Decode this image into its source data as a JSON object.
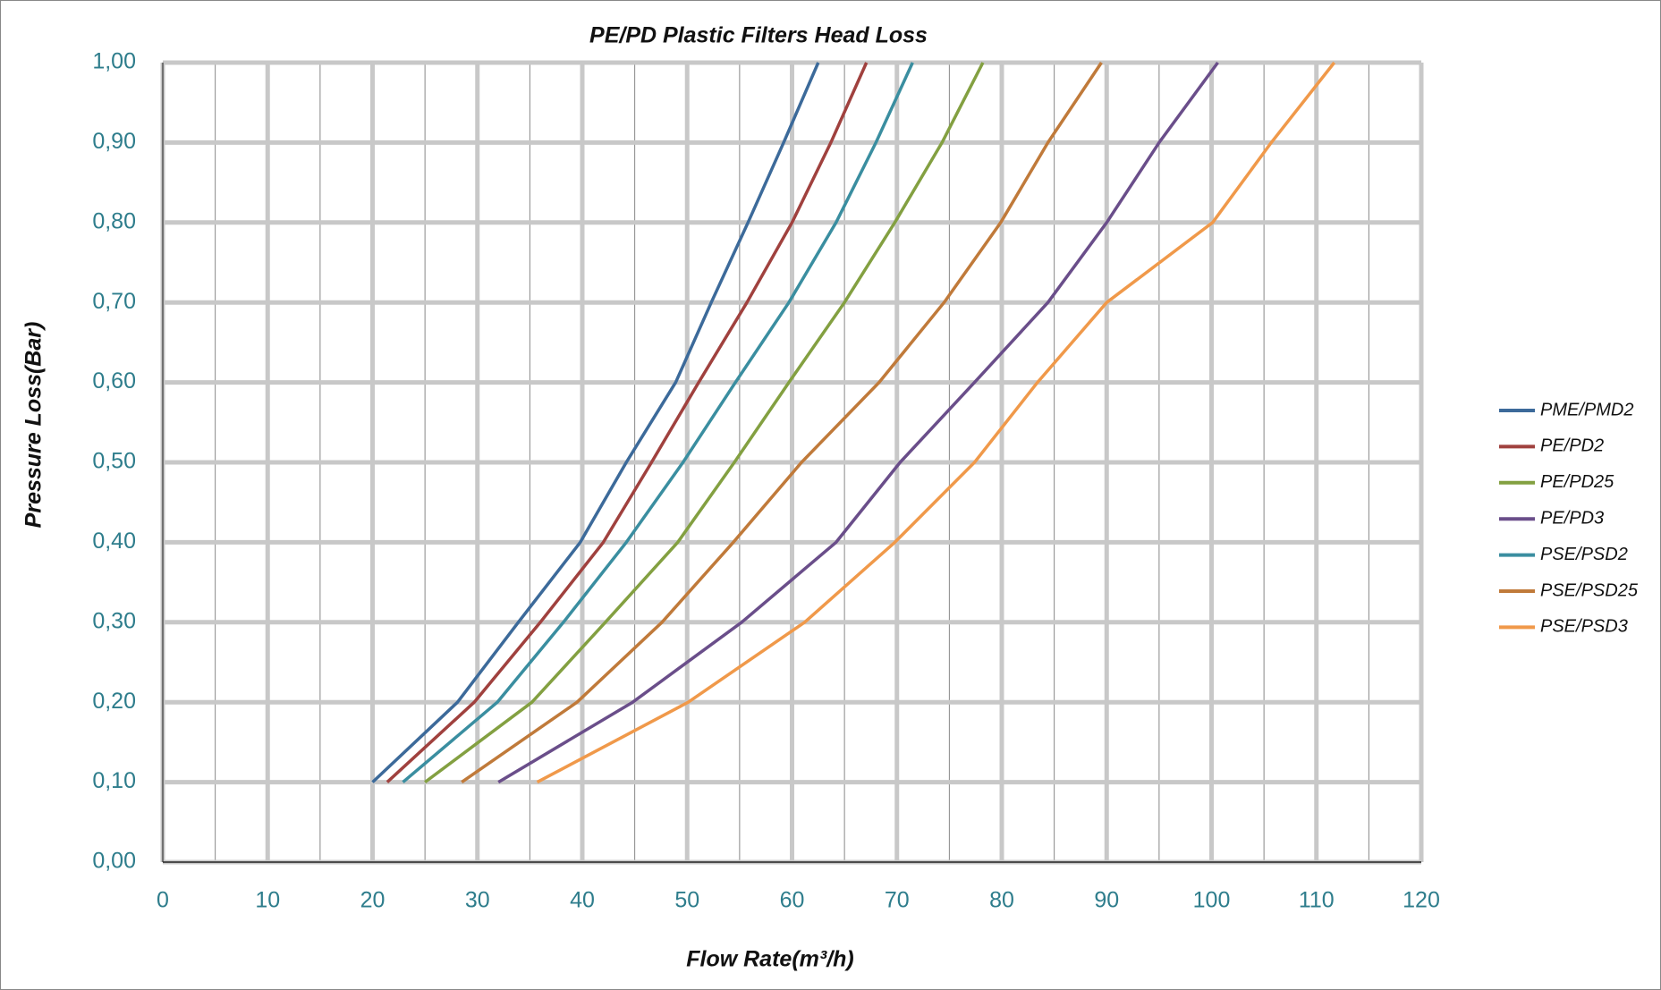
{
  "chart_data": {
    "type": "line",
    "title": "PE/PD Plastic Filters Head Loss",
    "x_label": "Flow Rate(m³/h)",
    "y_label": "Pressure Loss(Bar)",
    "xlim": [
      0,
      120
    ],
    "xticks": [
      0,
      10,
      20,
      30,
      40,
      50,
      60,
      70,
      80,
      90,
      100,
      110,
      120
    ],
    "ylim": [
      0,
      1
    ],
    "yticks": [
      {
        "value": 0,
        "label": "0,00"
      },
      {
        "value": 0.1,
        "label": "0,10"
      },
      {
        "value": 0.2,
        "label": "0,20"
      },
      {
        "value": 0.3,
        "label": "0,30"
      },
      {
        "value": 0.4,
        "label": "0,40"
      },
      {
        "value": 0.5,
        "label": "0,50"
      },
      {
        "value": 0.6,
        "label": "0,60"
      },
      {
        "value": 0.7,
        "label": "0,70"
      },
      {
        "value": 0.8,
        "label": "0,80"
      },
      {
        "value": 0.9,
        "label": "0,90"
      },
      {
        "value": 1,
        "label": "1,00"
      }
    ],
    "grid": true,
    "legend": "right",
    "series": [
      {
        "name": "PME/PMD2",
        "color": "#3C6A9A",
        "x": [
          20,
          28.1,
          33.9,
          39.8,
          44.2,
          48.9,
          52.3,
          55.8,
          59.2,
          62.5
        ],
        "values": [
          0.1,
          0.2,
          0.3,
          0.4,
          0.5,
          0.6,
          0.7,
          0.8,
          0.9,
          1
        ]
      },
      {
        "name": "PE/PD2",
        "color": "#A0413E",
        "x": [
          21.4,
          29.7,
          36,
          42,
          46.6,
          51.1,
          55.7,
          60,
          63.7,
          67.1
        ],
        "values": [
          0.1,
          0.2,
          0.3,
          0.4,
          0.5,
          0.6,
          0.7,
          0.8,
          0.9,
          1
        ]
      },
      {
        "name": "PE/PD25",
        "color": "#83A041",
        "x": [
          25,
          35.2,
          42.2,
          49.1,
          54.5,
          59.7,
          65,
          69.8,
          74.3,
          78.2
        ],
        "values": [
          0.1,
          0.2,
          0.3,
          0.4,
          0.5,
          0.6,
          0.7,
          0.8,
          0.9,
          1
        ]
      },
      {
        "name": "PE/PD3",
        "color": "#6A4E8A",
        "x": [
          32,
          44.8,
          55.2,
          64.2,
          70.3,
          77.4,
          84.4,
          90,
          95,
          100.6
        ],
        "values": [
          0.1,
          0.2,
          0.3,
          0.4,
          0.5,
          0.6,
          0.7,
          0.8,
          0.9,
          1
        ]
      },
      {
        "name": "PSE/PSD2",
        "color": "#3A8EA0",
        "x": [
          22.9,
          31.9,
          38.2,
          44.2,
          49.6,
          54.6,
          59.7,
          64.2,
          68,
          71.5
        ],
        "values": [
          0.1,
          0.2,
          0.3,
          0.4,
          0.5,
          0.6,
          0.7,
          0.8,
          0.9,
          1
        ]
      },
      {
        "name": "PSE/PSD25",
        "color": "#C07A3A",
        "x": [
          28.5,
          39.5,
          47.6,
          54.4,
          60.9,
          68.3,
          74.5,
          79.9,
          84.4,
          89.5
        ],
        "values": [
          0.1,
          0.2,
          0.3,
          0.4,
          0.5,
          0.6,
          0.7,
          0.8,
          0.9,
          1
        ]
      },
      {
        "name": "PSE/PSD3",
        "color": "#F0994A",
        "x": [
          35.7,
          50.1,
          61.2,
          69.8,
          77.4,
          83.4,
          90,
          100.1,
          105.7,
          111.7
        ],
        "values": [
          0.1,
          0.2,
          0.3,
          0.4,
          0.5,
          0.6,
          0.7,
          0.8,
          0.9,
          1
        ]
      }
    ]
  }
}
